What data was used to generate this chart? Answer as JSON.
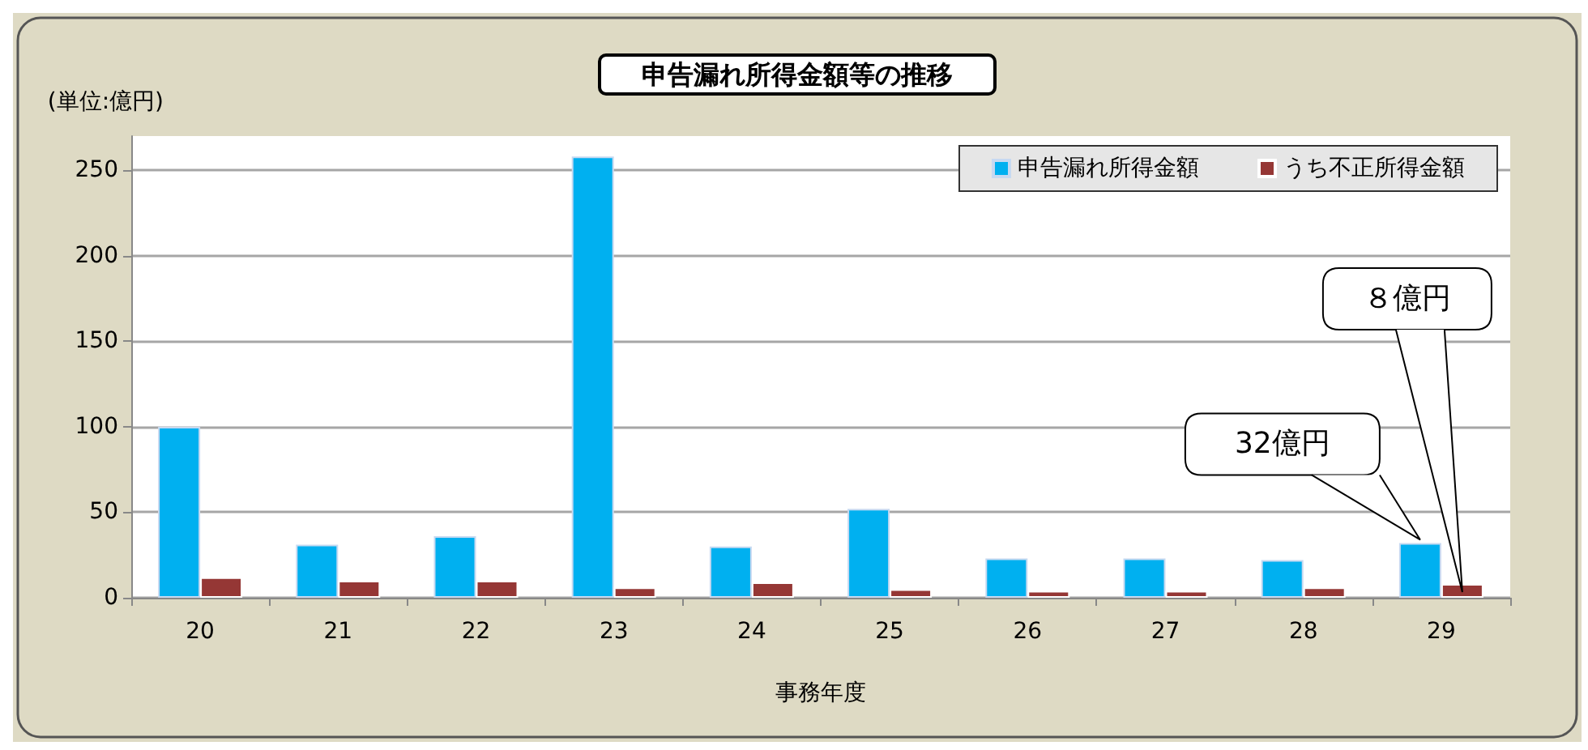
{
  "chart_data": {
    "type": "bar",
    "title": "申告漏れ所得金額等の推移",
    "ylabel": "(単位:億円)",
    "xlabel": "事務年度",
    "categories": [
      "20",
      "21",
      "22",
      "23",
      "24",
      "25",
      "26",
      "27",
      "28",
      "29"
    ],
    "series": [
      {
        "name": "申告漏れ所得金額",
        "color": "#00b0f0",
        "values": [
          100,
          31,
          36,
          258,
          30,
          52,
          23,
          23,
          22,
          32
        ]
      },
      {
        "name": "うち不正所得金額",
        "color": "#953735",
        "values": [
          12,
          10,
          10,
          6,
          9,
          5,
          4,
          4,
          6,
          8
        ]
      }
    ],
    "ylim": [
      0,
      270
    ],
    "yticks": [
      0,
      50,
      100,
      150,
      200,
      250
    ],
    "grid": "y",
    "legend": "top right",
    "annotations": [
      "32億円",
      "８億円"
    ]
  }
}
